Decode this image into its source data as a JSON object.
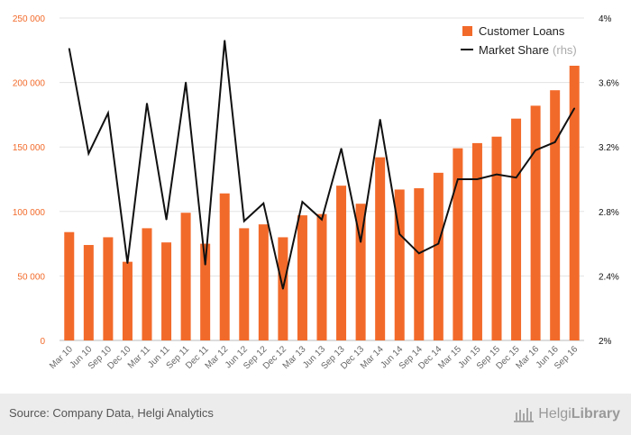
{
  "chart_data": {
    "type": "bar",
    "categories": [
      "Mar 10",
      "Jun 10",
      "Sep 10",
      "Dec 10",
      "Mar 11",
      "Jun 11",
      "Sep 11",
      "Dec 11",
      "Mar 12",
      "Jun 12",
      "Sep 12",
      "Dec 12",
      "Mar 13",
      "Jun 13",
      "Sep 13",
      "Dec 13",
      "Mar 14",
      "Jun 14",
      "Sep 14",
      "Dec 14",
      "Mar 15",
      "Jun 15",
      "Sep 15",
      "Dec 15",
      "Mar 16",
      "Jun 16",
      "Sep 16"
    ],
    "series": [
      {
        "name": "Customer Loans",
        "type": "bar",
        "axis": "left",
        "color": "#f26a2a",
        "values": [
          84000,
          74000,
          80000,
          61000,
          87000,
          76000,
          99000,
          75000,
          114000,
          87000,
          90000,
          80000,
          97000,
          98000,
          120000,
          106000,
          142000,
          117000,
          118000,
          130000,
          149000,
          153000,
          158000,
          172000,
          182000,
          194000,
          213000
        ]
      },
      {
        "name": "Market Share",
        "name_suffix": "(rhs)",
        "type": "line",
        "axis": "right",
        "unit": "%",
        "color": "#111111",
        "values": [
          3.81,
          3.16,
          3.41,
          2.48,
          3.47,
          2.75,
          3.6,
          2.47,
          3.86,
          2.74,
          2.85,
          2.32,
          2.86,
          2.75,
          3.19,
          2.61,
          3.37,
          2.66,
          2.54,
          2.6,
          3.0,
          3.0,
          3.03,
          3.01,
          3.18,
          3.23,
          3.44
        ]
      }
    ],
    "left_axis": {
      "ylim": [
        0,
        250000
      ],
      "ticks": [
        "0",
        "50 000",
        "100 000",
        "150 000",
        "200 000",
        "250 000"
      ],
      "tick_values": [
        0,
        50000,
        100000,
        150000,
        200000,
        250000
      ]
    },
    "right_axis": {
      "ylim": [
        2.0,
        4.0
      ],
      "ticks": [
        "2%",
        "2.4%",
        "2.8%",
        "3.2%",
        "3.6%",
        "4%"
      ],
      "tick_values": [
        2.0,
        2.4,
        2.8,
        3.2,
        3.6,
        4.0
      ]
    },
    "grid": true,
    "legend_position": "top-right"
  },
  "legend": {
    "loans_label": "Customer Loans",
    "share_label": "Market Share",
    "share_suffix": "(rhs)"
  },
  "footer": {
    "source": "Source: Company Data, Helgi Analytics",
    "logo_light": "Helgi",
    "logo_bold": "Library",
    "logo_icon": "building-icon"
  }
}
